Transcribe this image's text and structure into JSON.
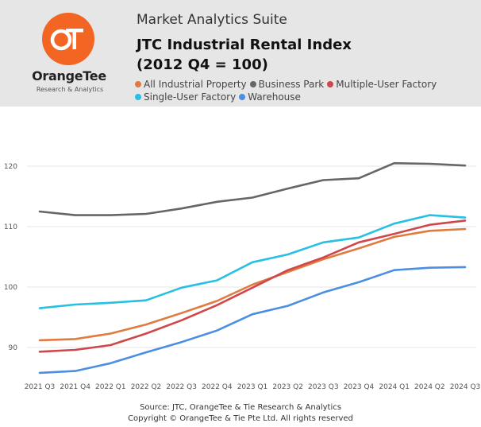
{
  "app": {
    "suite_name": "Market Analytics Suite",
    "logo_text": "OrangeTee",
    "logo_subtitle": "Research & Analytics",
    "logo_monogram": "OT",
    "logo_color": "#f26522"
  },
  "footer": {
    "source": "Source: JTC, OrangeTee & Tie Research & Analytics",
    "copyright": "Copyright © OrangeTee & Tie Pte Ltd. All rights reserved"
  },
  "chart_data": {
    "type": "line",
    "title_line1": "JTC Industrial Rental Index",
    "title_line2": "(2012 Q4 = 100)",
    "xlabel": "",
    "ylabel": "",
    "ylim": [
      84,
      124
    ],
    "yticks": [
      90,
      100,
      110,
      120
    ],
    "grid": true,
    "legend_position": "top",
    "categories": [
      "2021 Q3",
      "2021 Q4",
      "2022 Q1",
      "2022 Q2",
      "2022 Q3",
      "2022 Q4",
      "2023 Q1",
      "2023 Q2",
      "2023 Q3",
      "2023 Q4",
      "2024 Q1",
      "2024 Q2",
      "2024 Q3"
    ],
    "series": [
      {
        "name": "All Industrial Property",
        "color": "#e07a3f",
        "values": [
          91.2,
          91.4,
          92.3,
          93.8,
          95.7,
          97.7,
          100.4,
          102.5,
          104.6,
          106.4,
          108.3,
          109.3,
          109.6
        ]
      },
      {
        "name": "Business Park",
        "color": "#666666",
        "values": [
          112.5,
          111.9,
          111.9,
          112.1,
          113.0,
          114.1,
          114.8,
          116.3,
          117.7,
          118.0,
          120.5,
          120.4,
          120.1
        ]
      },
      {
        "name": "Multiple-User Factory",
        "color": "#d0474b",
        "values": [
          89.3,
          89.6,
          90.4,
          92.3,
          94.5,
          97.0,
          99.9,
          102.8,
          104.9,
          107.4,
          108.8,
          110.3,
          111.0
        ]
      },
      {
        "name": "Single-User Factory",
        "color": "#27c0e3",
        "values": [
          96.5,
          97.1,
          97.4,
          97.8,
          99.9,
          101.1,
          104.1,
          105.4,
          107.4,
          108.2,
          110.5,
          111.9,
          111.5
        ]
      },
      {
        "name": "Warehouse",
        "color": "#4a8fe2",
        "values": [
          85.8,
          86.1,
          87.4,
          89.2,
          90.9,
          92.8,
          95.5,
          96.9,
          99.1,
          100.8,
          102.8,
          103.2,
          103.3
        ]
      }
    ]
  }
}
